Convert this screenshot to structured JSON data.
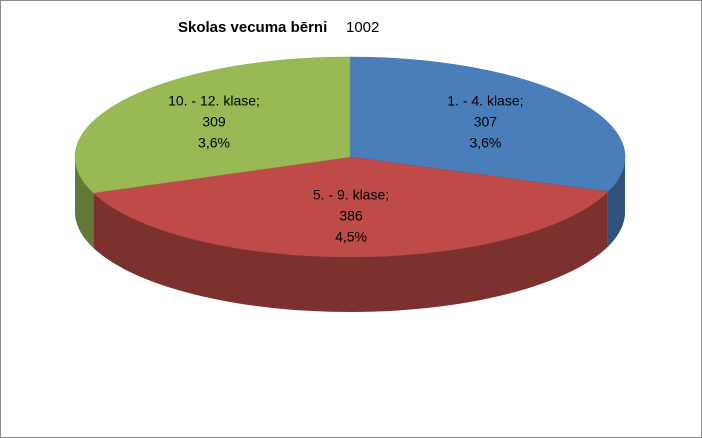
{
  "chart_data": {
    "type": "pie",
    "title": "Skolas vecuma bērni",
    "subtitle": "1002",
    "categories": [
      "1. - 4. klase;",
      "5. - 9. klase;",
      "10. - 12. klase;"
    ],
    "values": [
      307,
      386,
      309
    ],
    "percent_labels": [
      "3,6%",
      "4,5%",
      "3,6%"
    ],
    "colors": [
      "#4a7ebb",
      "#be4b48",
      "#98b954"
    ]
  }
}
